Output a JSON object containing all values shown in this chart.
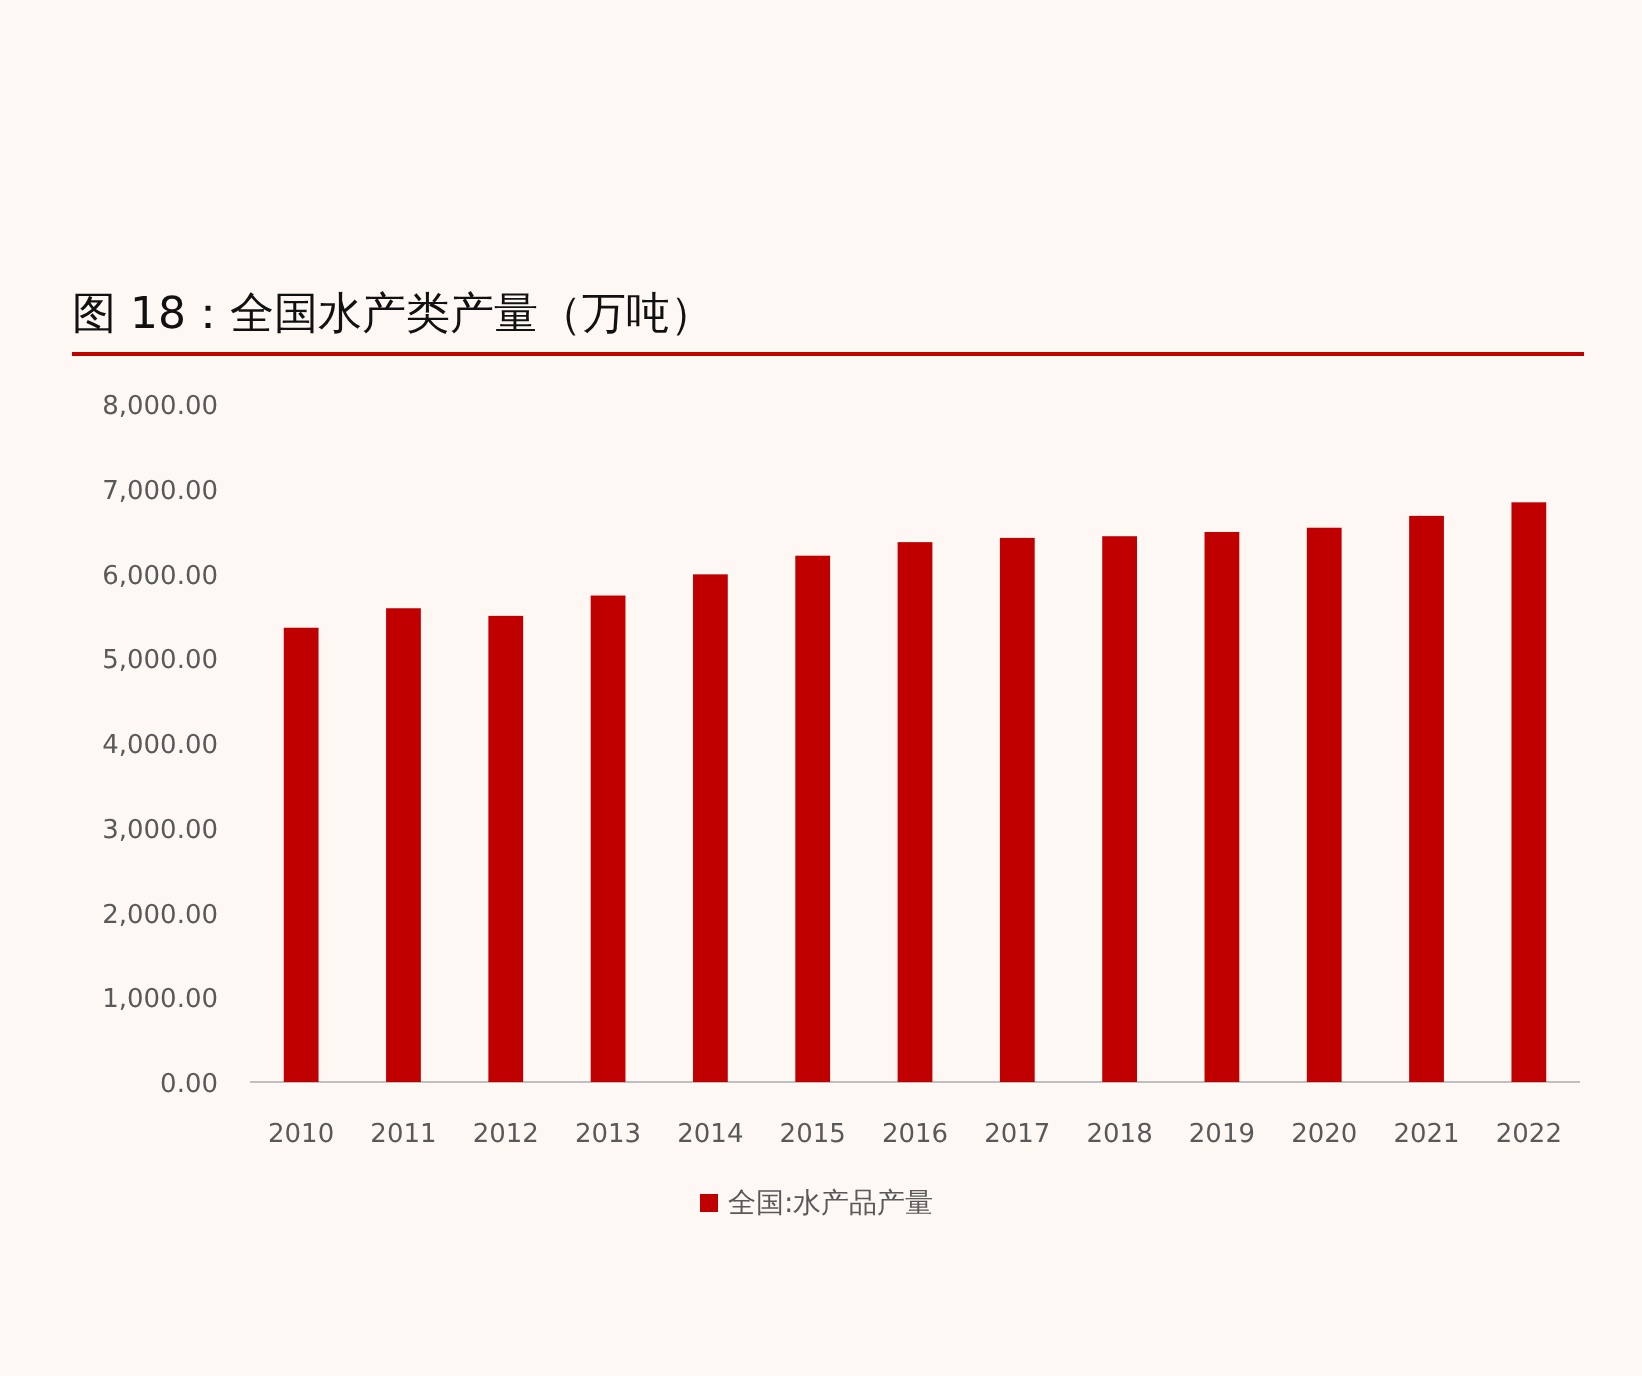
{
  "chart_data": {
    "type": "bar",
    "title": "图 18：全国水产类产量（万吨）",
    "categories": [
      "2010",
      "2011",
      "2012",
      "2013",
      "2014",
      "2015",
      "2016",
      "2017",
      "2018",
      "2019",
      "2020",
      "2021",
      "2022"
    ],
    "series": [
      {
        "name": "全国:水产品产量",
        "color": "#c00000",
        "values": [
          5360,
          5590,
          5500,
          5740,
          5990,
          6210,
          6370,
          6420,
          6440,
          6490,
          6540,
          6680,
          6840
        ]
      }
    ],
    "ylim": [
      0,
      8000
    ],
    "yticks": [
      {
        "value": 0,
        "label": "0.00"
      },
      {
        "value": 1000,
        "label": "1,000.00"
      },
      {
        "value": 2000,
        "label": "2,000.00"
      },
      {
        "value": 3000,
        "label": "3,000.00"
      },
      {
        "value": 4000,
        "label": "4,000.00"
      },
      {
        "value": 5000,
        "label": "5,000.00"
      },
      {
        "value": 6000,
        "label": "6,000.00"
      },
      {
        "value": 7000,
        "label": "7,000.00"
      },
      {
        "value": 8000,
        "label": "8,000.00"
      }
    ],
    "grid": false,
    "legend": "bottom"
  }
}
